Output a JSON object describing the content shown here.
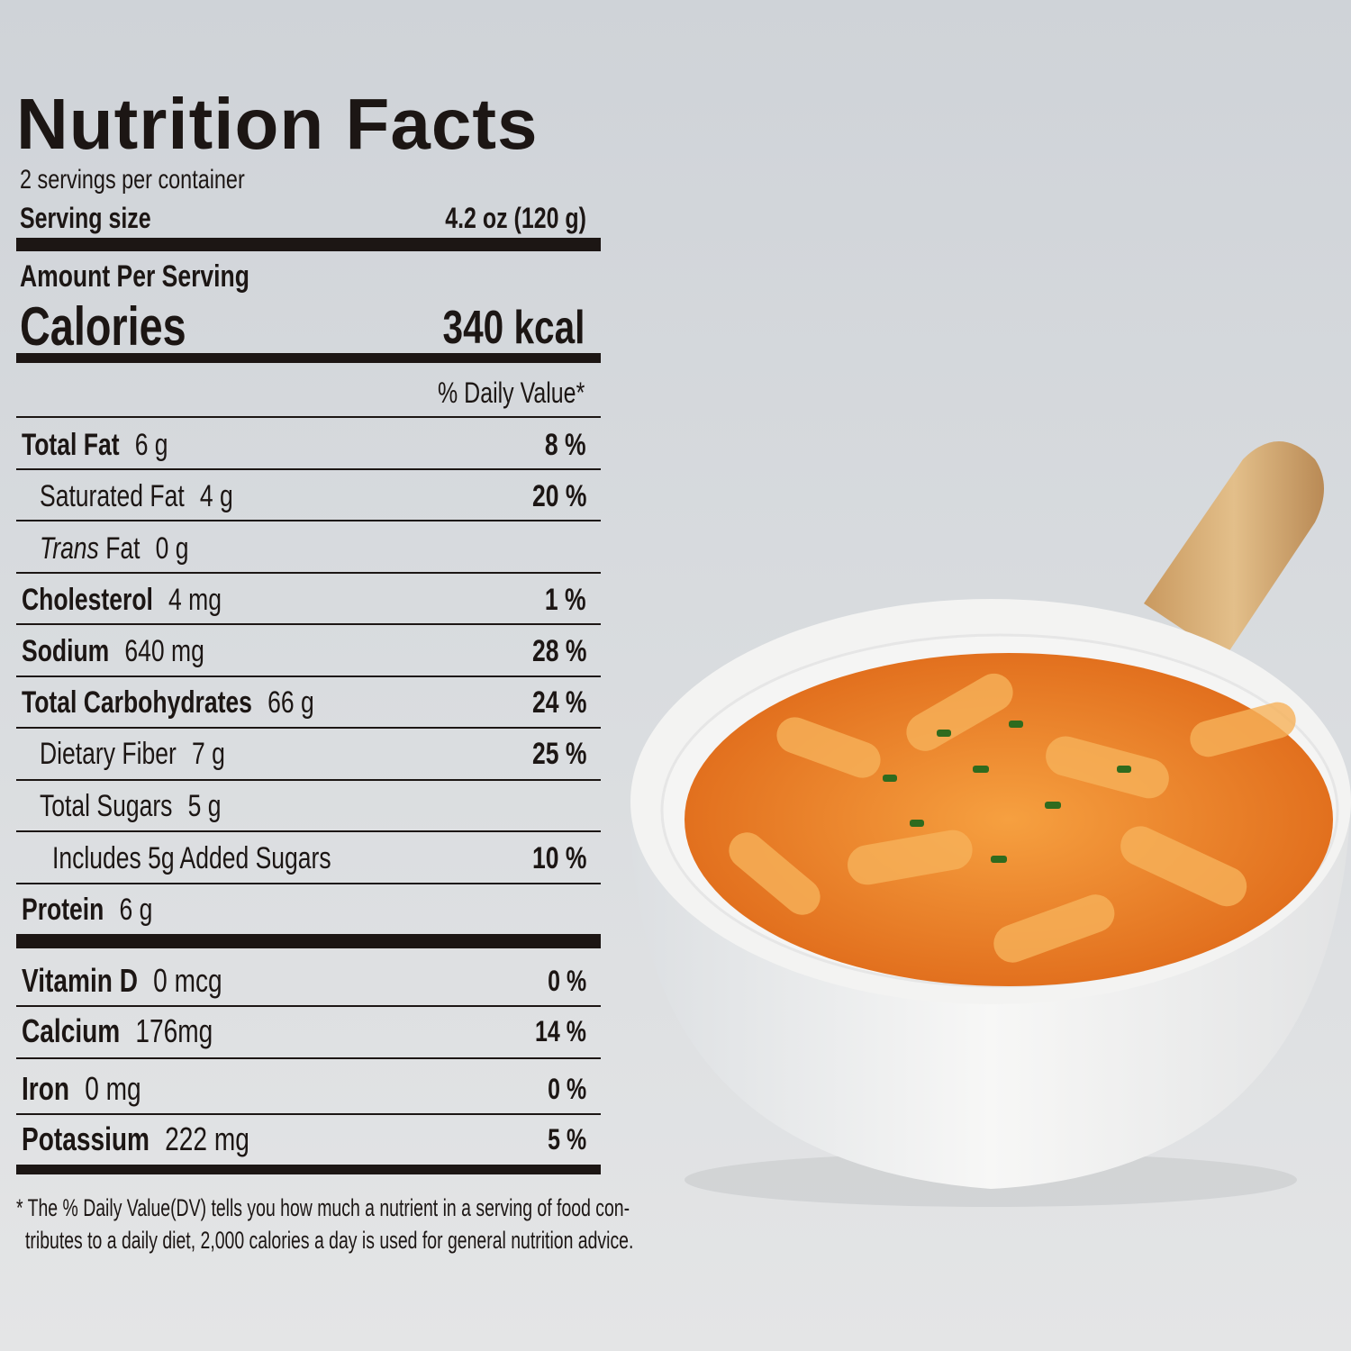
{
  "label": {
    "title": "Nutrition Facts",
    "servings": "2 servings per container",
    "serving_size_label": "Serving size",
    "serving_size_value": "4.2 oz (120 g)",
    "amount_per_serving": "Amount Per Serving",
    "calories_label": "Calories",
    "calories_value": "340 kcal",
    "dv_header": "% Daily Value*",
    "nutrients": [
      {
        "name": "Total Fat",
        "amount": "6 g",
        "dv": "8 %",
        "bold": true,
        "indent": 0
      },
      {
        "name": "Saturated Fat",
        "amount": "4 g",
        "dv": "20 %",
        "bold": false,
        "indent": 1
      },
      {
        "name_italic": "Trans",
        "name": " Fat",
        "amount": "0 g",
        "dv": "",
        "bold": false,
        "indent": 1
      },
      {
        "name": "Cholesterol",
        "amount": "4 mg",
        "dv": "1 %",
        "bold": true,
        "indent": 0
      },
      {
        "name": "Sodium",
        "amount": "640 mg",
        "dv": "28 %",
        "bold": true,
        "indent": 0
      },
      {
        "name": "Total Carbohydrates",
        "amount": "66 g",
        "dv": "24 %",
        "bold": true,
        "indent": 0
      },
      {
        "name": "Dietary Fiber",
        "amount": "7 g",
        "dv": "25 %",
        "bold": false,
        "indent": 1
      },
      {
        "name": "Total Sugars",
        "amount": "5 g",
        "dv": "",
        "bold": false,
        "indent": 1
      },
      {
        "name": "Includes 5g Added Sugars",
        "amount": "",
        "dv": "10 %",
        "bold": false,
        "indent": 2
      },
      {
        "name": "Protein",
        "amount": "6 g",
        "dv": "",
        "bold": true,
        "indent": 0
      }
    ],
    "vitamins": [
      {
        "name": "Vitamin D",
        "amount": "0 mcg",
        "dv": "0 %"
      },
      {
        "name": "Calcium",
        "amount": "176mg",
        "dv": "14 %"
      },
      {
        "name": "Iron",
        "amount": "0 mg",
        "dv": "0 %"
      },
      {
        "name": "Potassium",
        "amount": "222 mg",
        "dv": "5 %"
      }
    ],
    "footnote_line1": "* The % Daily Value(DV) tells you how much a nutrient in a serving of food con-",
    "footnote_line2": "tributes to a daily diet, 2,000 calories a day is used for general nutrition advice."
  },
  "colors": {
    "ink": "#1c1614",
    "sauce": "#f08a2c",
    "bowl": "#f4f4f3",
    "handle": "#d9b27c"
  }
}
